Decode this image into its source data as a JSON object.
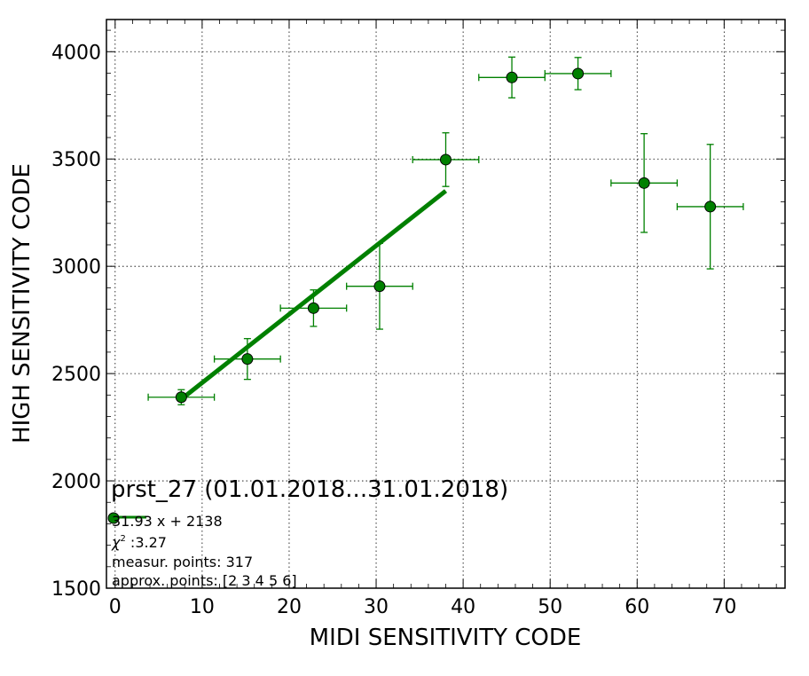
{
  "chart_data": {
    "type": "scatter",
    "title": "prst_27 (01.01.2018...31.01.2018)",
    "xlabel": "MIDI SENSITIVITY CODE",
    "ylabel": "HIGH SENSITIVITY CODE",
    "xlim": [
      -1,
      77
    ],
    "ylim": [
      1500,
      4150
    ],
    "xticks": [
      "0",
      "10",
      "20",
      "30",
      "40",
      "50",
      "60",
      "70"
    ],
    "yticks": [
      "1500",
      "2000",
      "2500",
      "3000",
      "3500",
      "4000"
    ],
    "grid": true,
    "color": "#008000",
    "points": [
      {
        "x": 7.6,
        "y": 2390,
        "xerr": 3.8,
        "yerr": 35
      },
      {
        "x": 15.2,
        "y": 2568,
        "xerr": 3.8,
        "yerr": 95
      },
      {
        "x": 22.8,
        "y": 2805,
        "xerr": 3.8,
        "yerr": 85
      },
      {
        "x": 30.4,
        "y": 2907,
        "xerr": 3.8,
        "yerr": 200
      },
      {
        "x": 38.0,
        "y": 3497,
        "xerr": 3.8,
        "yerr": 125
      },
      {
        "x": 45.6,
        "y": 3880,
        "xerr": 3.8,
        "yerr": 95
      },
      {
        "x": 53.2,
        "y": 3898,
        "xerr": 3.8,
        "yerr": 75
      },
      {
        "x": 60.8,
        "y": 3388,
        "xerr": 3.8,
        "yerr": 230
      },
      {
        "x": 68.4,
        "y": 3278,
        "xerr": 3.8,
        "yerr": 290
      }
    ],
    "fit": {
      "slope": 31.93,
      "intercept": 2138,
      "x_range": [
        7.6,
        38.0
      ]
    },
    "legend": {
      "position": "lower-left",
      "fit_label": "31.93 x + 2138",
      "chi2_symbol": "χ",
      "chi2_sup": "2",
      "chi2_value": " :3.27",
      "measur_points": "measur. points: 317",
      "approx_points": "approx. points: [2 3 4 5 6]"
    }
  }
}
